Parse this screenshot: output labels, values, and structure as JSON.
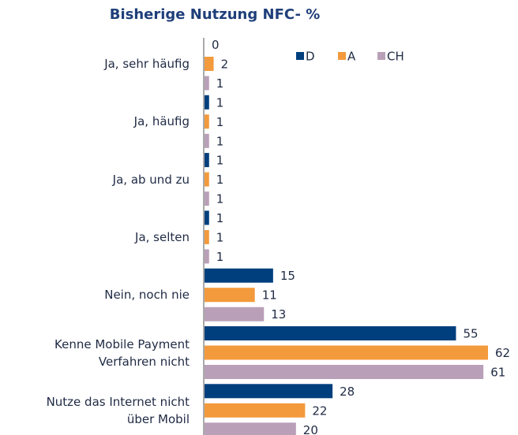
{
  "chart_data": {
    "type": "barh",
    "title": "Bisherige Nutzung NFC- %",
    "categories": [
      "Ja, sehr häufig",
      "Ja, häufig",
      "Ja, ab und zu",
      "Ja, selten",
      "Nein, noch nie",
      "Kenne Mobile Payment\nVerfahren nicht",
      "Nutze das Internet nicht\nüber Mobil"
    ],
    "series": [
      {
        "name": "D",
        "color": "#003f7d",
        "values": [
          0,
          1,
          1,
          1,
          15,
          55,
          28
        ]
      },
      {
        "name": "A",
        "color": "#f39a3c",
        "values": [
          2,
          1,
          1,
          1,
          11,
          62,
          22
        ]
      },
      {
        "name": "CH",
        "color": "#b9a0b8",
        "values": [
          1,
          1,
          1,
          1,
          13,
          61,
          20
        ]
      }
    ],
    "legend": "top"
  }
}
